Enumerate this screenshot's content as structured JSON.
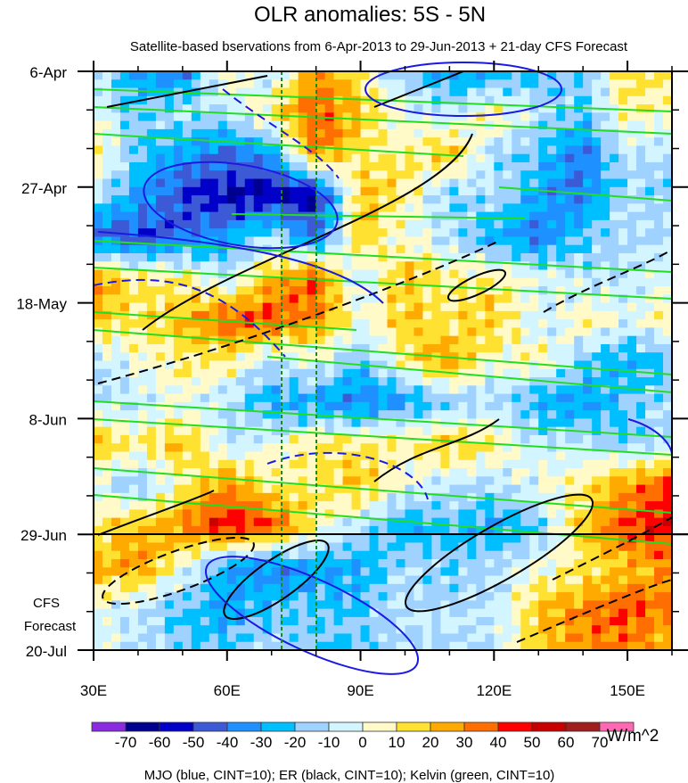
{
  "chart_data": {
    "type": "heatmap",
    "title": "OLR anomalies: 5S - 5N",
    "subtitle": "Satellite-based bservations from 6-Apr-2013 to 29-Jun-2013 + 21-day CFS Forecast",
    "xlabel": "",
    "ylabel": "",
    "xlim": [
      30,
      160
    ],
    "ylim_days": [
      0,
      105
    ],
    "x_ticks": [
      {
        "value": 30,
        "label": "30E"
      },
      {
        "value": 60,
        "label": "60E"
      },
      {
        "value": 90,
        "label": "90E"
      },
      {
        "value": 120,
        "label": "120E"
      },
      {
        "value": 150,
        "label": "150E"
      }
    ],
    "y_ticks": [
      {
        "day": 0,
        "label": "6-Apr"
      },
      {
        "day": 21,
        "label": "27-Apr"
      },
      {
        "day": 42,
        "label": "18-May"
      },
      {
        "day": 63,
        "label": "8-Jun"
      },
      {
        "day": 84,
        "label": "29-Jun"
      },
      {
        "day": 105,
        "label": "20-Jul"
      }
    ],
    "forecast_label": [
      "CFS",
      "Forecast"
    ],
    "forecast_start_day": 84,
    "reference_longitudes": [
      72,
      80
    ],
    "grid_x": [
      30,
      40,
      50,
      60,
      70,
      80,
      90,
      100,
      110,
      120,
      130,
      140,
      150,
      160
    ],
    "grid_day": [
      0,
      7.5,
      15,
      22.5,
      30,
      37.5,
      45,
      52.5,
      60,
      67.5,
      75,
      82.5,
      90,
      97.5,
      105
    ],
    "values": [
      [
        -10,
        -30,
        -40,
        10,
        -10,
        30,
        10,
        -20,
        -30,
        -30,
        -20,
        -20,
        20,
        10
      ],
      [
        0,
        -20,
        -10,
        -10,
        10,
        40,
        20,
        0,
        -10,
        10,
        -10,
        -20,
        10,
        0
      ],
      [
        10,
        -20,
        -30,
        -40,
        -30,
        30,
        10,
        10,
        20,
        -10,
        -20,
        -40,
        -10,
        -10
      ],
      [
        -10,
        -30,
        -50,
        -60,
        -60,
        -60,
        20,
        10,
        -20,
        -10,
        -30,
        -40,
        -10,
        -20
      ],
      [
        -40,
        -50,
        -40,
        -30,
        -10,
        -40,
        20,
        0,
        -10,
        -30,
        -40,
        -20,
        -10,
        -10
      ],
      [
        30,
        10,
        10,
        -10,
        20,
        40,
        -10,
        20,
        10,
        10,
        0,
        -10,
        -10,
        0
      ],
      [
        20,
        10,
        20,
        40,
        40,
        30,
        0,
        20,
        10,
        20,
        -10,
        10,
        0,
        10
      ],
      [
        -10,
        0,
        10,
        10,
        -10,
        0,
        -20,
        10,
        30,
        0,
        10,
        -20,
        -30,
        -20
      ],
      [
        -10,
        -10,
        0,
        -10,
        -30,
        -30,
        -40,
        -30,
        -20,
        -10,
        -30,
        -30,
        -20,
        -10
      ],
      [
        20,
        10,
        20,
        -10,
        0,
        10,
        10,
        10,
        20,
        10,
        -10,
        -10,
        -20,
        -10
      ],
      [
        0,
        -20,
        10,
        30,
        10,
        10,
        20,
        0,
        -10,
        -10,
        0,
        10,
        30,
        40
      ],
      [
        10,
        20,
        30,
        50,
        40,
        10,
        -10,
        -30,
        -20,
        -30,
        -20,
        20,
        40,
        50
      ],
      [
        20,
        30,
        0,
        -30,
        -40,
        -30,
        -30,
        -10,
        -20,
        -10,
        0,
        10,
        20,
        30
      ],
      [
        0,
        -10,
        -20,
        -30,
        -20,
        -20,
        -20,
        -10,
        -10,
        -10,
        20,
        30,
        40,
        30
      ],
      [
        0,
        -10,
        -20,
        -20,
        -10,
        -20,
        -20,
        -10,
        -10,
        -10,
        20,
        30,
        30,
        20
      ]
    ],
    "colorbar": {
      "levels": [
        -70,
        -60,
        -50,
        -40,
        -30,
        -20,
        -10,
        0,
        10,
        20,
        30,
        40,
        50,
        60,
        70
      ],
      "labels": [
        "-70",
        "-60",
        "-50",
        "-40",
        "-30",
        "-20",
        "-10",
        "0",
        "10",
        "20",
        "30",
        "40",
        "50",
        "60",
        "70"
      ],
      "colors": [
        "#8a2be2",
        "#000090",
        "#0000c8",
        "#3c5ad6",
        "#1e90ff",
        "#00bfff",
        "#a0d2ff",
        "#d2f5ff",
        "#fffac8",
        "#ffe132",
        "#ffaa00",
        "#ff6e00",
        "#ff0000",
        "#c80000",
        "#a01e1e",
        "#ff69b4"
      ],
      "units": "W/m^2"
    },
    "footnote": "MJO (blue, CINT=10); ER (black, CINT=10); Kelvin (green, CINT=10)"
  }
}
